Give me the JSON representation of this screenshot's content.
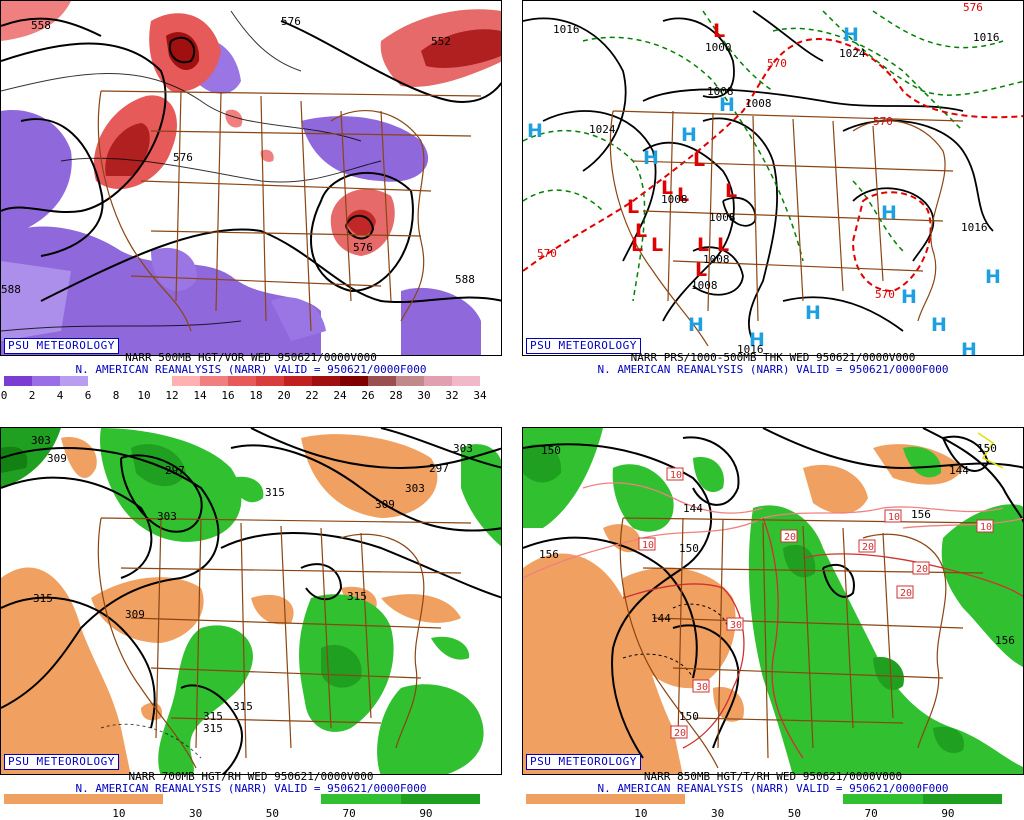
{
  "psu_label": "PSU METEOROLOGY",
  "panels": [
    {
      "caption1": "NARR 500MB HGT/VOR WED 950621/0000V000",
      "caption2": "N. AMERICAN REANALYSIS (NARR) VALID = 950621/0000F000",
      "colorbar": {
        "ticks": [
          "0",
          "2",
          "4",
          "6",
          "8",
          "10",
          "12",
          "14",
          "16",
          "18",
          "20",
          "22",
          "24",
          "26",
          "28",
          "30",
          "32",
          "34"
        ],
        "colors": [
          "#7a3cd2",
          "#9a6ee6",
          "#b99ef0",
          "#ffffff",
          "#ffffff",
          "#ffffff",
          "#ffb0b0",
          "#f08080",
          "#e65a5a",
          "#d83c3c",
          "#c02020",
          "#a01010",
          "#800000",
          "#9a5050",
          "#c08a8a",
          "#e0a0b0",
          "#f0b8c8"
        ]
      },
      "contour_labels": [
        "576",
        "552",
        "576",
        "588",
        "558",
        "588",
        "576"
      ]
    },
    {
      "caption1": "NARR PRS/1000-500MB THK WED 950621/0000V000",
      "caption2": "N. AMERICAN REANALYSIS (NARR) VALID = 950621/0000F000",
      "contour_labels": [
        "1016",
        "1000",
        "1024",
        "1008",
        "1008",
        "1024",
        "1008",
        "1008",
        "1016",
        "1016",
        "1008",
        "1008",
        "1016",
        "570",
        "570",
        "570",
        "570",
        "576"
      ],
      "high_symbol": "H",
      "low_symbol": "L"
    },
    {
      "caption1": "NARR 700MB HGT/RH WED 950621/0000V000",
      "caption2": "N. AMERICAN REANALYSIS (NARR) VALID = 950621/0000F000",
      "colorbar": {
        "ticks": [
          "10",
          "30",
          "50",
          "70",
          "90"
        ],
        "colors": [
          "#f0a060",
          "#f0a060",
          "#ffffff",
          "#ffffff",
          "#30c030",
          "#20a020"
        ]
      },
      "contour_labels": [
        "303",
        "309",
        "297",
        "303",
        "315",
        "309",
        "303",
        "297",
        "315",
        "309",
        "315",
        "315",
        "315",
        "315",
        "303"
      ]
    },
    {
      "caption1": "NARR 850MB HGT/T/RH WED 950621/0000V000",
      "caption2": "N. AMERICAN REANALYSIS (NARR) VALID = 950621/0000F000",
      "colorbar": {
        "ticks": [
          "10",
          "30",
          "50",
          "70",
          "90"
        ],
        "colors": [
          "#f0a060",
          "#f0a060",
          "#ffffff",
          "#ffffff",
          "#30c030",
          "#20a020"
        ]
      },
      "contour_labels": [
        "150",
        "144",
        "156",
        "150",
        "144",
        "150",
        "156",
        "150",
        "144",
        "156"
      ],
      "temp_labels": [
        "10",
        "10",
        "10",
        "10",
        "20",
        "20",
        "20",
        "20",
        "30",
        "30",
        "20",
        "10"
      ]
    }
  ]
}
